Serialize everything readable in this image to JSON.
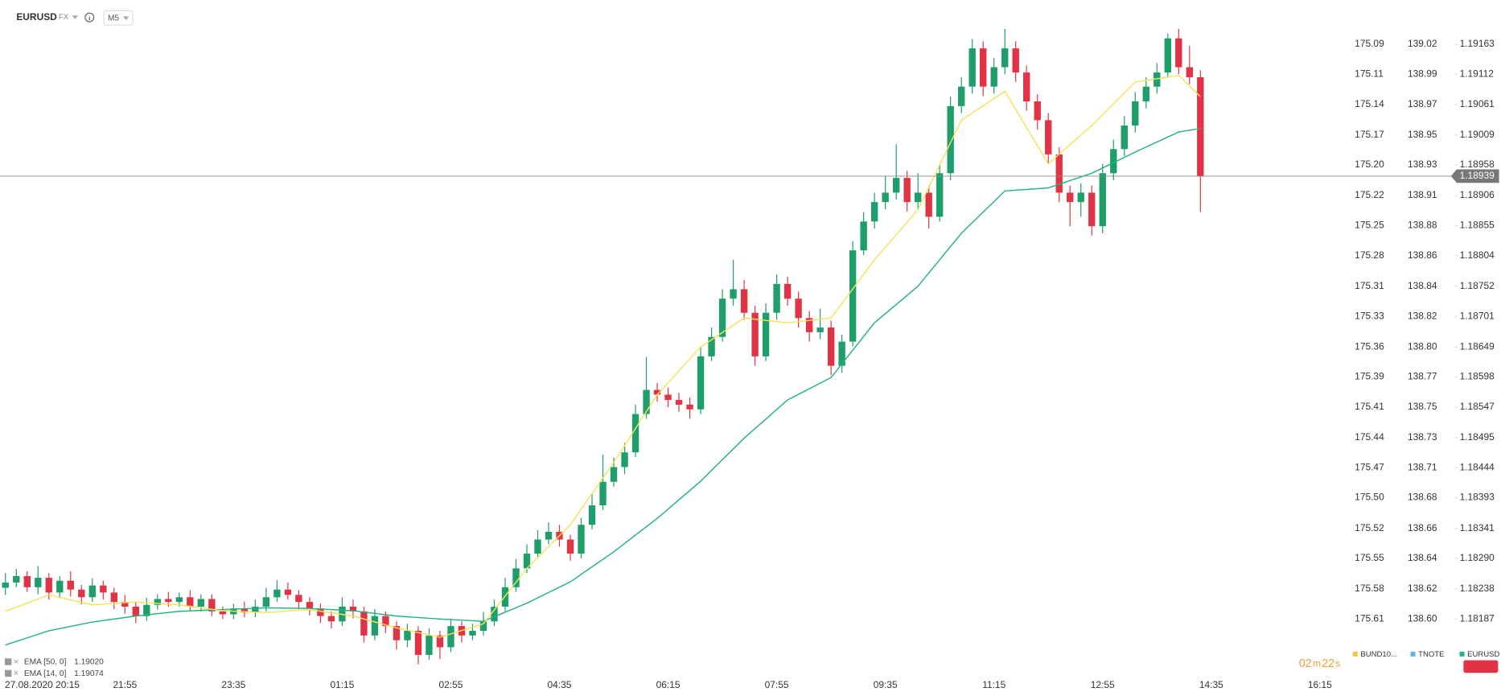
{
  "chart_data": {
    "type": "candlestick",
    "symbol": "EURUSD",
    "market": "FX",
    "timeframe": "M5",
    "start_label": "27.08.2020 20:15",
    "up_color": "#1e9e6a",
    "down_color": "#e23344",
    "open": [
      1.1824,
      1.18249,
      1.1826,
      1.18241,
      1.18257,
      1.18232,
      1.18252,
      1.18237,
      1.18224,
      1.18244,
      1.18232,
      1.18216,
      1.18208,
      1.18192,
      1.18211,
      1.18221,
      1.18216,
      1.18224,
      1.18208,
      1.18221,
      1.182,
      1.18195,
      1.18205,
      1.18198,
      1.18208,
      1.18224,
      1.18237,
      1.18228,
      1.18216,
      1.18205,
      1.18192,
      1.18183,
      1.18208,
      1.182,
      1.18159,
      1.18192,
      1.18175,
      1.18151,
      1.18167,
      1.18126,
      1.18159,
      1.18139,
      1.18175,
      1.18159,
      1.18167,
      1.18183,
      1.18208,
      1.18241,
      1.18273,
      1.18298,
      1.18322,
      1.18335,
      1.18322,
      1.18298,
      1.18347,
      1.1838,
      1.1842,
      1.18445,
      1.1847,
      1.18535,
      1.18576,
      1.18568,
      1.18559,
      1.18551,
      1.18543,
      1.18633,
      1.18666,
      1.18731,
      1.18747,
      1.18707,
      1.18633,
      1.18707,
      1.18756,
      1.18731,
      1.18698,
      1.18674,
      1.18682,
      1.18617,
      1.18658,
      1.18813,
      1.18862,
      1.18895,
      1.18911,
      1.18936,
      1.18895,
      1.18911,
      1.1887,
      1.18944,
      1.19058,
      1.19091,
      1.19156,
      1.19091,
      1.19124,
      1.19156,
      1.19115,
      1.19066,
      1.19034,
      1.18976,
      1.18911,
      1.18895,
      1.18911,
      1.18854,
      1.18944,
      1.18985,
      1.19025,
      1.19066,
      1.19091,
      1.19115,
      1.19173,
      1.19124,
      1.19107
    ],
    "high": [
      1.18265,
      1.18272,
      1.18268,
      1.18277,
      1.18265,
      1.1826,
      1.18268,
      1.18245,
      1.18256,
      1.18252,
      1.1824,
      1.18228,
      1.18216,
      1.18223,
      1.18229,
      1.18233,
      1.18232,
      1.18236,
      1.18229,
      1.18229,
      1.18208,
      1.18213,
      1.18217,
      1.1822,
      1.1824,
      1.18253,
      1.18249,
      1.18236,
      1.18224,
      1.18213,
      1.182,
      1.18224,
      1.1822,
      1.18208,
      1.18204,
      1.182,
      1.18183,
      1.18179,
      1.18175,
      1.18171,
      1.18167,
      1.18187,
      1.18183,
      1.18179,
      1.18199,
      1.1822,
      1.18257,
      1.18289,
      1.18314,
      1.18338,
      1.18351,
      1.18347,
      1.1833,
      1.18359,
      1.184,
      1.18466,
      1.18461,
      1.18486,
      1.18551,
      1.18632,
      1.18588,
      1.1858,
      1.18571,
      1.18563,
      1.18649,
      1.18682,
      1.18747,
      1.18797,
      1.18763,
      1.18719,
      1.18723,
      1.18772,
      1.18768,
      1.18743,
      1.1871,
      1.18714,
      1.18694,
      1.1867,
      1.18829,
      1.18878,
      1.18911,
      1.1894,
      1.18993,
      1.18948,
      1.18944,
      1.18923,
      1.1896,
      1.19074,
      1.19107,
      1.19172,
      1.19168,
      1.1914,
      1.19189,
      1.19168,
      1.19127,
      1.19078,
      1.19046,
      1.18988,
      1.18923,
      1.18927,
      1.18923,
      1.1896,
      1.19001,
      1.19041,
      1.19082,
      1.19107,
      1.19131,
      1.19181,
      1.19189,
      1.1916,
      1.19119
    ],
    "low": [
      1.18228,
      1.18241,
      1.18233,
      1.18229,
      1.1822,
      1.18224,
      1.18225,
      1.18212,
      1.18216,
      1.1822,
      1.18204,
      1.18196,
      1.1818,
      1.18184,
      1.18203,
      1.18208,
      1.18208,
      1.182,
      1.182,
      1.18192,
      1.18187,
      1.18187,
      1.1819,
      1.1819,
      1.182,
      1.18216,
      1.1822,
      1.18204,
      1.18193,
      1.1818,
      1.18171,
      1.18175,
      1.18188,
      1.18147,
      1.18151,
      1.18163,
      1.18135,
      1.18139,
      1.1811,
      1.18118,
      1.18119,
      1.18131,
      1.18147,
      1.18151,
      1.18159,
      1.18175,
      1.182,
      1.18233,
      1.18265,
      1.1829,
      1.18314,
      1.1831,
      1.18286,
      1.1829,
      1.18339,
      1.18372,
      1.18412,
      1.18433,
      1.18462,
      1.18527,
      1.18556,
      1.18547,
      1.18539,
      1.18527,
      1.18535,
      1.18625,
      1.18658,
      1.18719,
      1.18695,
      1.18617,
      1.18625,
      1.18695,
      1.18719,
      1.18682,
      1.18658,
      1.18662,
      1.18601,
      1.18605,
      1.1865,
      1.18805,
      1.1885,
      1.18883,
      1.18899,
      1.18879,
      1.18883,
      1.1885,
      1.18862,
      1.18932,
      1.19046,
      1.19079,
      1.19075,
      1.19079,
      1.19112,
      1.19099,
      1.1905,
      1.19018,
      1.1896,
      1.18895,
      1.18854,
      1.1887,
      1.18838,
      1.18842,
      1.18932,
      1.18973,
      1.19013,
      1.19054,
      1.19079,
      1.19107,
      1.19112,
      1.19095,
      1.18878
    ],
    "close": [
      1.18249,
      1.1826,
      1.18241,
      1.18257,
      1.18232,
      1.18252,
      1.18237,
      1.18224,
      1.18244,
      1.18232,
      1.18216,
      1.18208,
      1.18192,
      1.18211,
      1.18221,
      1.18216,
      1.18224,
      1.18208,
      1.18221,
      1.182,
      1.18195,
      1.18205,
      1.18198,
      1.18208,
      1.18224,
      1.18237,
      1.18228,
      1.18216,
      1.18205,
      1.18192,
      1.18183,
      1.18208,
      1.182,
      1.18159,
      1.18192,
      1.18175,
      1.18151,
      1.18167,
      1.18126,
      1.18159,
      1.18139,
      1.18175,
      1.18159,
      1.18167,
      1.18183,
      1.18208,
      1.18241,
      1.18273,
      1.18298,
      1.18322,
      1.18335,
      1.18322,
      1.18298,
      1.18347,
      1.1838,
      1.1842,
      1.18445,
      1.1847,
      1.18535,
      1.18576,
      1.18568,
      1.18559,
      1.18551,
      1.18543,
      1.18633,
      1.18666,
      1.18731,
      1.18747,
      1.18707,
      1.18633,
      1.18707,
      1.18756,
      1.18731,
      1.18698,
      1.18674,
      1.18682,
      1.18617,
      1.18658,
      1.18813,
      1.18862,
      1.18895,
      1.18911,
      1.18936,
      1.18895,
      1.18911,
      1.1887,
      1.18944,
      1.19058,
      1.19091,
      1.19156,
      1.19091,
      1.19124,
      1.19156,
      1.19115,
      1.19066,
      1.19034,
      1.18976,
      1.18911,
      1.18895,
      1.18911,
      1.18854,
      1.18944,
      1.18985,
      1.19025,
      1.19066,
      1.19091,
      1.19115,
      1.19173,
      1.19124,
      1.19107,
      1.18939
    ],
    "xlim": [
      -0.5,
      123.5
    ],
    "xticks": [
      {
        "value": 11,
        "label": "21:55"
      },
      {
        "value": 21,
        "label": "23:35"
      },
      {
        "value": 31,
        "label": "01:15"
      },
      {
        "value": 41,
        "label": "02:55"
      },
      {
        "value": 51,
        "label": "04:35"
      },
      {
        "value": 61,
        "label": "06:15"
      },
      {
        "value": 71,
        "label": "07:55"
      },
      {
        "value": 81,
        "label": "09:35"
      },
      {
        "value": 91,
        "label": "11:15"
      },
      {
        "value": 101,
        "label": "12:55"
      },
      {
        "value": 111,
        "label": "14:35"
      },
      {
        "value": 121,
        "label": "16:15"
      }
    ],
    "ylim": [
      1.18094,
      1.19238
    ],
    "yticks": [
      1.19163,
      1.19112,
      1.19061,
      1.19009,
      1.18958,
      1.18906,
      1.18855,
      1.18804,
      1.18752,
      1.18701,
      1.18649,
      1.18598,
      1.18547,
      1.18495,
      1.18444,
      1.18393,
      1.18341,
      {
        "value": 1.1829,
        "label": "1.18290"
      },
      1.18238,
      1.18187
    ],
    "bund_axis": [
      "175.09",
      "175.11",
      "175.14",
      "175.17",
      "175.20",
      "175.22",
      "175.25",
      "175.28",
      "175.31",
      "175.33",
      "175.36",
      "175.39",
      "175.41",
      "175.44",
      "175.47",
      "175.50",
      "175.52",
      "175.55",
      "175.58",
      "175.61"
    ],
    "tnote_axis": [
      "139.02",
      "138.99",
      "138.97",
      "138.95",
      "138.93",
      "138.91",
      "138.88",
      "138.86",
      "138.84",
      "138.82",
      "138.80",
      "138.77",
      "138.75",
      "138.73",
      "138.71",
      "138.68",
      "138.66",
      "138.64",
      "138.62",
      "138.60"
    ],
    "current_price": 1.18939,
    "indicators": [
      {
        "name": "EMA [50, 0]",
        "legend_value": "1.19020",
        "color": "#25b27f",
        "x": [
          0,
          4,
          8,
          12,
          16,
          20,
          24,
          28,
          32,
          36,
          40,
          44,
          48,
          52,
          56,
          60,
          64,
          68,
          72,
          76,
          80,
          84,
          88,
          92,
          96,
          100,
          104,
          108,
          110
        ],
        "values": [
          1.18143,
          1.18167,
          1.18182,
          1.18192,
          1.182,
          1.18203,
          1.18206,
          1.18205,
          1.18201,
          1.18192,
          1.18187,
          1.18183,
          1.18214,
          1.1825,
          1.18301,
          1.18358,
          1.18421,
          1.18494,
          1.18559,
          1.18597,
          1.1869,
          1.18752,
          1.18842,
          1.18914,
          1.18919,
          1.18944,
          1.1898,
          1.19014,
          1.1902
        ]
      },
      {
        "name": "EMA [14, 0]",
        "legend_value": "1.19074",
        "color": "#f5e25a",
        "x": [
          0,
          4,
          8,
          12,
          16,
          20,
          24,
          28,
          32,
          36,
          40,
          44,
          48,
          52,
          56,
          60,
          64,
          68,
          72,
          76,
          80,
          84,
          88,
          92,
          96,
          100,
          104,
          108,
          110
        ],
        "values": [
          1.182,
          1.18228,
          1.18211,
          1.18216,
          1.18211,
          1.18201,
          1.18198,
          1.18203,
          1.18192,
          1.18172,
          1.18156,
          1.18179,
          1.18273,
          1.18347,
          1.18453,
          1.18568,
          1.18649,
          1.18698,
          1.1869,
          1.18698,
          1.18797,
          1.18882,
          1.19034,
          1.19083,
          1.1896,
          1.19025,
          1.19099,
          1.1911,
          1.19074
        ]
      }
    ],
    "timer": [
      "02",
      "m",
      "22",
      "s"
    ],
    "compare_legend": [
      {
        "name": "BUND10...",
        "color": "#f5c542"
      },
      {
        "name": "TNOTE",
        "color": "#5bb4e5"
      },
      {
        "name": "EURUSD",
        "color": "#25b27f"
      }
    ]
  }
}
